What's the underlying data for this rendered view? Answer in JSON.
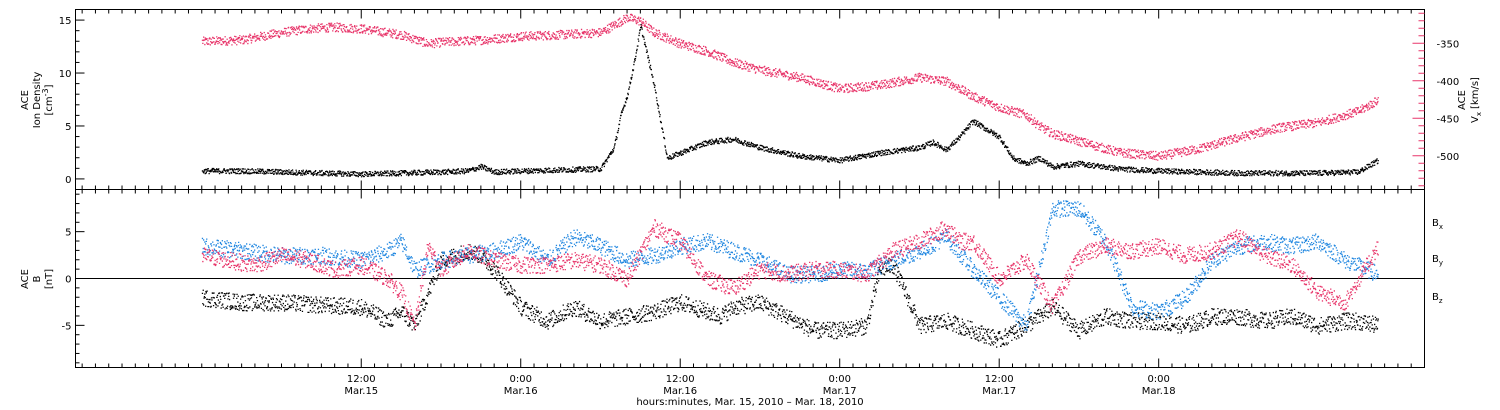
{
  "chart_data": [
    {
      "type": "scatter",
      "panel": "top",
      "ylabel": "ACE Ion Density [cm^-3]",
      "ylabel_lines": [
        "ACE",
        "Ion Density",
        "[cm",
        "-3",
        "]"
      ],
      "ylim": [
        -1,
        16
      ],
      "yticks": [
        0,
        5,
        10,
        15
      ],
      "y2label_lines": [
        "ACE",
        "V",
        "x",
        "[km/s]"
      ],
      "y2lim": [
        -545,
        -305
      ],
      "y2ticks": [
        -350,
        -400,
        -450,
        -500
      ],
      "series": [
        {
          "color": "#000000",
          "axis": "left",
          "x": [
            0,
            3,
            6,
            9,
            12,
            15,
            18,
            20,
            21,
            22,
            24,
            27,
            30,
            31,
            31.5,
            32,
            32.5,
            33,
            34,
            35,
            36,
            38,
            40,
            42,
            45,
            48,
            51,
            54,
            55,
            56,
            57,
            58,
            60,
            61,
            62,
            63,
            64,
            66,
            69,
            72,
            75,
            78,
            81,
            84,
            87,
            88.5
          ],
          "y": [
            0.8,
            0.8,
            0.7,
            0.6,
            0.5,
            0.6,
            0.7,
            0.8,
            1.2,
            0.7,
            0.8,
            0.9,
            1.0,
            3.0,
            6.0,
            8.0,
            11.0,
            14.5,
            9.0,
            2.0,
            2.5,
            3.5,
            3.8,
            3.0,
            2.2,
            1.8,
            2.5,
            3.0,
            3.5,
            2.8,
            4.0,
            5.5,
            4.0,
            2.0,
            1.5,
            2.0,
            1.2,
            1.5,
            1.0,
            0.8,
            0.7,
            0.6,
            0.6,
            0.6,
            0.7,
            1.8
          ]
        },
        {
          "color": "#e8356a",
          "axis": "right",
          "x": [
            0,
            3,
            6,
            8,
            10,
            12,
            15,
            17,
            18,
            21,
            24,
            27,
            30,
            31,
            32,
            33,
            34,
            36,
            38,
            40,
            42,
            45,
            48,
            51,
            54,
            56,
            57,
            58,
            60,
            62,
            63,
            64,
            66,
            69,
            72,
            75,
            78,
            81,
            84,
            87,
            88.5
          ],
          "y": [
            -347,
            -345,
            -335,
            -330,
            -328,
            -330,
            -338,
            -350,
            -348,
            -345,
            -340,
            -338,
            -335,
            -325,
            -315,
            -320,
            -335,
            -350,
            -360,
            -375,
            -385,
            -395,
            -410,
            -405,
            -395,
            -400,
            -410,
            -420,
            -435,
            -445,
            -460,
            -470,
            -480,
            -495,
            -500,
            -490,
            -475,
            -462,
            -455,
            -440,
            -425
          ]
        }
      ]
    },
    {
      "type": "scatter",
      "panel": "bottom",
      "ylabel": "ACE B [nT]",
      "ylabel_lines": [
        "ACE",
        "B",
        "[nT]"
      ],
      "ylim": [
        -9.5,
        9.5
      ],
      "yticks": [
        5,
        0,
        -5
      ],
      "legend_placement": "right",
      "series": [
        {
          "name": "Bx",
          "label_main": "B",
          "label_sub": "x",
          "color": "#000000",
          "x": [
            0,
            3,
            6,
            9,
            12,
            14,
            15,
            16,
            18,
            20,
            21,
            22,
            24,
            26,
            28,
            30,
            32,
            34,
            36,
            38,
            39,
            40,
            42,
            44,
            46,
            48,
            50,
            51,
            52,
            54,
            56,
            58,
            60,
            62,
            64,
            66,
            68,
            70,
            72,
            74,
            76,
            78,
            80,
            82,
            84,
            86,
            87,
            88.5
          ],
          "y": [
            -2.0,
            -2.5,
            -2.5,
            -2.8,
            -3.0,
            -4.5,
            -3.5,
            -5.0,
            2.0,
            3.0,
            2.5,
            1.0,
            -3.0,
            -4.5,
            -3.0,
            -4.5,
            -4.0,
            -3.5,
            -2.5,
            -3.5,
            -4.0,
            -3.0,
            -2.5,
            -4.0,
            -5.5,
            -5.5,
            -5.0,
            1.0,
            1.5,
            -5.0,
            -4.5,
            -5.5,
            -6.5,
            -5.0,
            -3.0,
            -5.5,
            -4.0,
            -4.5,
            -4.5,
            -5.0,
            -4.0,
            -4.0,
            -4.5,
            -4.0,
            -5.0,
            -4.5,
            -4.5,
            -5.0
          ]
        },
        {
          "name": "By",
          "label_main": "B",
          "label_sub": "y",
          "color": "#1f86e0",
          "x": [
            0,
            3,
            6,
            9,
            12,
            14,
            15,
            16,
            18,
            20,
            22,
            24,
            26,
            28,
            30,
            32,
            34,
            36,
            38,
            40,
            42,
            44,
            46,
            48,
            50,
            52,
            54,
            56,
            58,
            60,
            62,
            64,
            66,
            68,
            70,
            72,
            74,
            76,
            78,
            80,
            82,
            84,
            86,
            88.5
          ],
          "y": [
            3.5,
            3.0,
            2.5,
            2.5,
            2.0,
            3.0,
            4.0,
            1.0,
            2.0,
            2.5,
            3.0,
            4.0,
            2.0,
            4.5,
            3.5,
            2.0,
            2.5,
            3.5,
            4.0,
            3.0,
            2.0,
            0.5,
            0.5,
            1.0,
            0.8,
            2.0,
            3.0,
            4.5,
            1.0,
            -2.0,
            -5.0,
            7.5,
            7.5,
            4.0,
            -3.0,
            -3.5,
            -2.0,
            2.0,
            3.5,
            4.0,
            3.5,
            4.0,
            2.0,
            0.5
          ]
        },
        {
          "name": "Bz",
          "label_main": "B",
          "label_sub": "z",
          "color": "#e8356a",
          "x": [
            0,
            2,
            4,
            6,
            8,
            10,
            12,
            14,
            15,
            16,
            17,
            18,
            20,
            22,
            24,
            26,
            28,
            30,
            32,
            34,
            36,
            38,
            40,
            42,
            44,
            46,
            48,
            50,
            52,
            54,
            56,
            57,
            58,
            60,
            62,
            64,
            66,
            68,
            70,
            72,
            74,
            76,
            78,
            80,
            82,
            84,
            86,
            88.5
          ],
          "y": [
            2.5,
            2.0,
            1.5,
            2.5,
            2.0,
            1.0,
            1.5,
            0.0,
            -1.5,
            -5.0,
            3.5,
            1.0,
            3.0,
            2.0,
            1.5,
            1.5,
            2.0,
            1.5,
            0.0,
            5.5,
            4.0,
            0.0,
            -1.0,
            1.0,
            0.5,
            1.0,
            1.0,
            0.5,
            3.0,
            4.0,
            5.5,
            4.0,
            4.0,
            0.0,
            2.0,
            -3.0,
            2.5,
            3.5,
            3.0,
            3.5,
            2.5,
            3.0,
            4.5,
            2.5,
            1.5,
            -1.5,
            -2.5,
            3.5
          ]
        }
      ]
    }
  ],
  "x_axis": {
    "range_hours": [
      -9.5,
      92.0
    ],
    "tick_step_hours": 1,
    "major_ticks": [
      {
        "hour": 12,
        "time": "12:00",
        "date": "Mar.15"
      },
      {
        "hour": 24,
        "time": "0:00",
        "date": "Mar.16"
      },
      {
        "hour": 36,
        "time": "12:00",
        "date": "Mar.16"
      },
      {
        "hour": 48,
        "time": "0:00",
        "date": "Mar.17"
      },
      {
        "hour": 60,
        "time": "12:00",
        "date": "Mar.17"
      },
      {
        "hour": 72,
        "time": "0:00",
        "date": "Mar.18"
      }
    ],
    "xlabel": "hours:minutes, Mar. 15, 2010 – Mar. 18, 2010"
  }
}
